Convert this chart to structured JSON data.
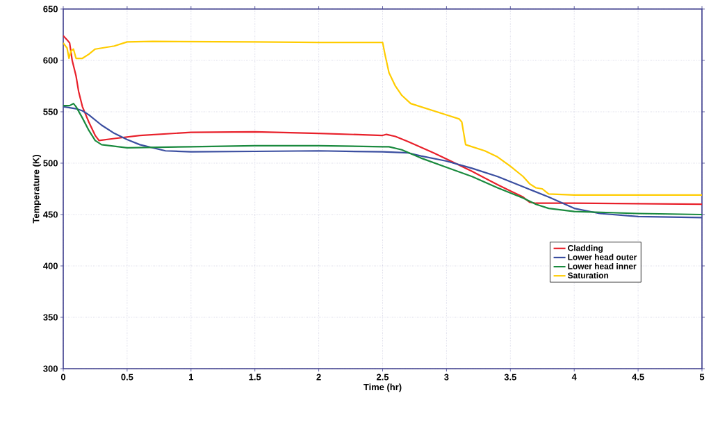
{
  "chart_data": {
    "type": "line",
    "xlabel": "Time (hr)",
    "ylabel": "Temperature (K)",
    "xlim": [
      0,
      5
    ],
    "ylim": [
      300,
      650
    ],
    "xticks": [
      0,
      0.5,
      1,
      1.5,
      2,
      2.5,
      3,
      3.5,
      4,
      4.5,
      5
    ],
    "yticks": [
      300,
      350,
      400,
      450,
      500,
      550,
      600,
      650
    ],
    "grid": true,
    "legend": "bottom right",
    "marker": "none",
    "line_style": "solid",
    "series": [
      {
        "name": "Cladding",
        "color": "#e8202a",
        "x": [
          0,
          0.03,
          0.05,
          0.07,
          0.1,
          0.12,
          0.15,
          0.2,
          0.25,
          0.28,
          0.4,
          0.6,
          1,
          1.5,
          2,
          2.5,
          2.53,
          2.6,
          2.7,
          2.9,
          3,
          3.2,
          3.4,
          3.5,
          3.6,
          3.65,
          3.7,
          4,
          5
        ],
        "values": [
          624,
          620,
          617,
          600,
          585,
          570,
          555,
          540,
          527,
          522,
          524,
          527,
          530,
          530.5,
          529,
          527,
          528,
          526,
          521,
          510,
          504,
          492,
          479,
          473,
          467,
          462,
          461,
          461,
          460
        ]
      },
      {
        "name": "Lower head outer",
        "color": "#3a4ea0",
        "x": [
          0,
          0.1,
          0.15,
          0.2,
          0.3,
          0.4,
          0.5,
          0.6,
          0.8,
          1,
          1.5,
          2,
          2.5,
          2.7,
          2.8,
          3,
          3.2,
          3.4,
          3.6,
          3.8,
          4,
          4.2,
          4.5,
          5
        ],
        "values": [
          555,
          553,
          551,
          547,
          537,
          529,
          523,
          518,
          512,
          511,
          511.5,
          512,
          511,
          510,
          507,
          502,
          495,
          487,
          477,
          467,
          456,
          451,
          448,
          447
        ]
      },
      {
        "name": "Lower head inner",
        "color": "#1a8a3e",
        "x": [
          0,
          0.05,
          0.08,
          0.1,
          0.15,
          0.2,
          0.25,
          0.3,
          0.5,
          1,
          1.5,
          2,
          2.5,
          2.55,
          2.65,
          2.8,
          3,
          3.2,
          3.4,
          3.6,
          3.7,
          3.8,
          4,
          4.5,
          5
        ],
        "values": [
          556,
          556,
          558,
          555,
          544,
          532,
          522,
          518,
          515,
          516,
          517,
          517,
          516,
          516,
          513,
          505,
          496,
          487,
          476,
          466,
          460,
          456,
          453,
          451,
          450
        ]
      },
      {
        "name": "Saturation",
        "color": "#ffcc00",
        "x": [
          0,
          0.03,
          0.045,
          0.06,
          0.08,
          0.1,
          0.15,
          0.2,
          0.25,
          0.3,
          0.4,
          0.5,
          0.7,
          1.5,
          2,
          2.5,
          2.52,
          2.55,
          2.6,
          2.65,
          2.72,
          3,
          3.1,
          3.12,
          3.15,
          3.3,
          3.4,
          3.5,
          3.6,
          3.65,
          3.7,
          3.75,
          3.8,
          4,
          5
        ],
        "values": [
          617,
          612,
          602,
          609,
          611,
          602,
          602,
          606,
          611,
          612,
          614,
          618,
          618.5,
          618,
          617.5,
          617.5,
          605,
          588,
          575,
          566,
          558,
          547,
          543,
          540,
          518,
          512,
          506,
          497,
          487,
          480,
          476,
          475,
          470,
          469,
          469
        ]
      }
    ]
  }
}
